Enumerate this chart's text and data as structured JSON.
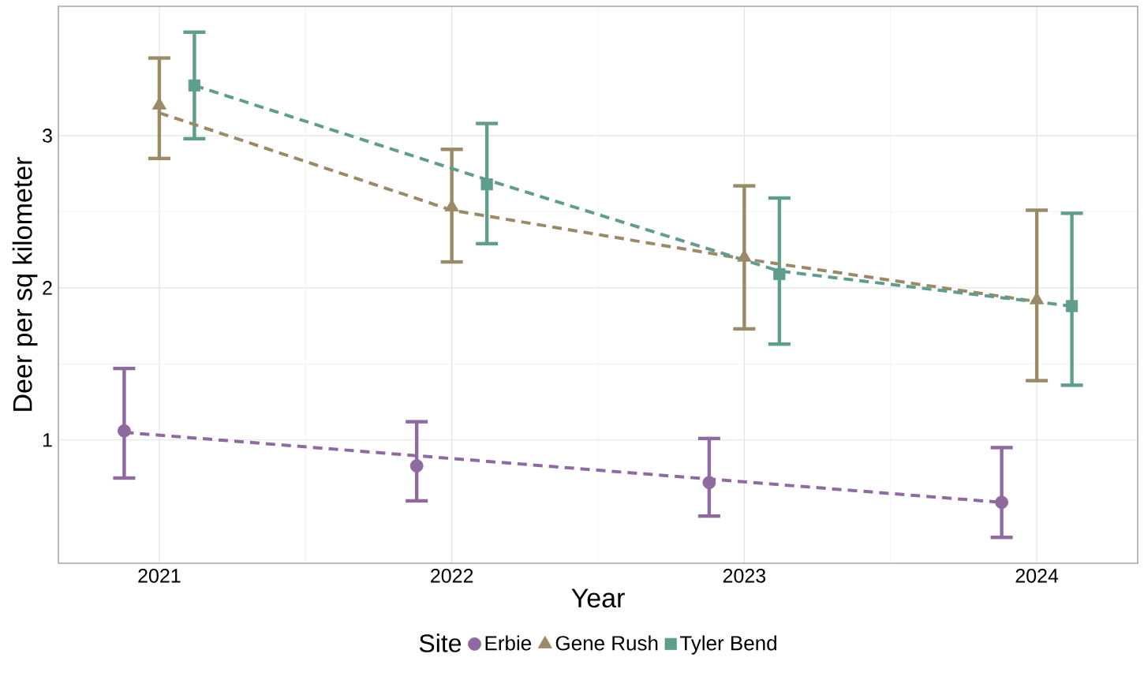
{
  "chart_data": {
    "type": "scatter",
    "xlabel": "Year",
    "ylabel": "Deer per sq kilometer",
    "legend_title": "Site",
    "xlim": [
      2020.655,
      2024.345
    ],
    "ylim": [
      0.19,
      3.85
    ],
    "xticks": [
      2021,
      2022,
      2023,
      2024
    ],
    "yticks": [
      1,
      2,
      3
    ],
    "grid": true,
    "legend": "bottom",
    "series": [
      {
        "name": "Erbie",
        "marker": "circle",
        "color": "#8e6aa0",
        "x": [
          2020.88,
          2021.88,
          2022.88,
          2023.88
        ],
        "values": [
          1.06,
          0.83,
          0.72,
          0.59
        ],
        "errors": [
          [
            0.75,
            1.47
          ],
          [
            0.6,
            1.12
          ],
          [
            0.5,
            1.01
          ],
          [
            0.36,
            0.95
          ]
        ]
      },
      {
        "name": "Gene Rush",
        "marker": "triangle",
        "color": "#9b8a66",
        "x": [
          2021,
          2022,
          2023,
          2024
        ],
        "values": [
          3.2,
          2.53,
          2.2,
          1.92
        ],
        "errors": [
          [
            2.85,
            3.51
          ],
          [
            2.17,
            2.91
          ],
          [
            1.73,
            2.67
          ],
          [
            1.39,
            2.51
          ]
        ]
      },
      {
        "name": "Tyler Bend",
        "marker": "square",
        "color": "#5f9e8c",
        "x": [
          2021.12,
          2022.12,
          2023.12,
          2024.12
        ],
        "values": [
          3.33,
          2.68,
          2.09,
          1.88
        ],
        "errors": [
          [
            2.98,
            3.68
          ],
          [
            2.29,
            3.08
          ],
          [
            1.63,
            2.59
          ],
          [
            1.36,
            2.49
          ]
        ]
      },
      {
        "type": "line",
        "line_style": "dashed",
        "color": "#8e6aa0",
        "x": [
          2020.88,
          2023.88
        ],
        "values": [
          1.05,
          0.59
        ]
      },
      {
        "type": "line",
        "line_style": "dashed",
        "color": "#9b8a66",
        "x": [
          2021,
          2022,
          2023,
          2024
        ],
        "values": [
          3.15,
          2.51,
          2.19,
          1.91
        ]
      },
      {
        "type": "line",
        "line_style": "dashed",
        "color": "#5f9e8c",
        "x": [
          2021.12,
          2022.12,
          2023.12,
          2024.12
        ],
        "values": [
          3.33,
          2.71,
          2.11,
          1.88
        ]
      }
    ]
  }
}
